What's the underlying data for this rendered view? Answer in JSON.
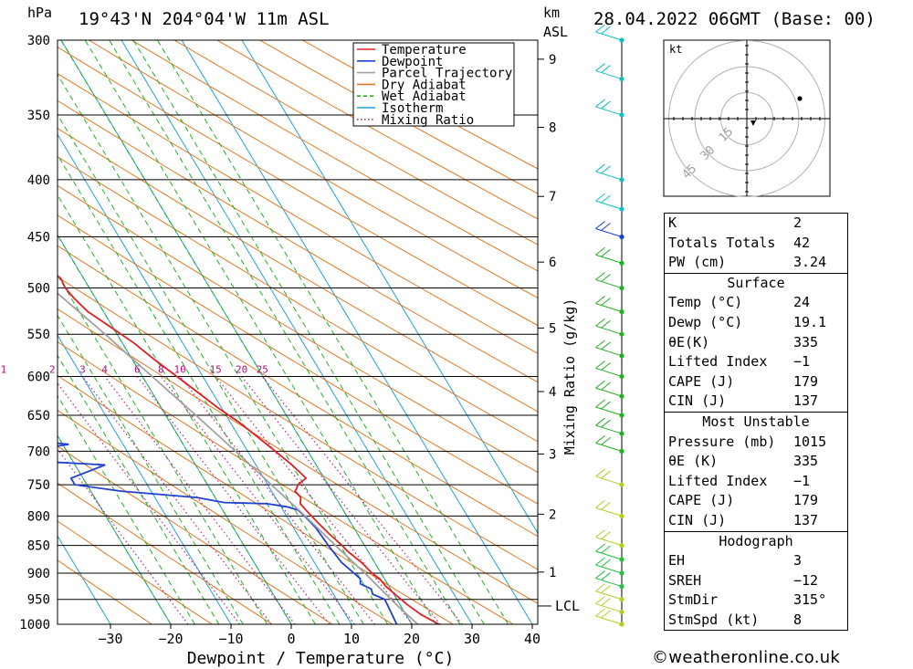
{
  "header": {
    "location": "19°43'N  204°04'W  11m  ASL",
    "pressure_unit": "hPa",
    "km_label": "km",
    "asl_label": "ASL",
    "datetime": "28.04.2022  06GMT  (Base: 00)"
  },
  "legend": [
    {
      "label": "Temperature",
      "color": "#e02020",
      "style": "solid"
    },
    {
      "label": "Dewpoint",
      "color": "#2040d0",
      "style": "solid"
    },
    {
      "label": "Parcel Trajectory",
      "color": "#a0a0a0",
      "style": "solid"
    },
    {
      "label": "Dry Adiabat",
      "color": "#e07820",
      "style": "solid"
    },
    {
      "label": "Wet Adiabat",
      "color": "#20b020",
      "style": "dashed"
    },
    {
      "label": "Isotherm",
      "color": "#20a0e0",
      "style": "solid"
    },
    {
      "label": "Mixing Ratio",
      "color": "#c02080",
      "style": "dotted"
    }
  ],
  "chart_data": {
    "type": "line",
    "chart_kind": "skew-T log-p sounding",
    "xlabel": "Dewpoint / Temperature (°C)",
    "ylabel_left": "hPa",
    "ylabel_right": "Mixing Ratio (g/kg)",
    "x_ticks": [
      -30,
      -20,
      -10,
      0,
      10,
      20,
      30,
      40
    ],
    "x_tick_labels": [
      "−30",
      "−20",
      "−10",
      "0",
      "10",
      "20",
      "30",
      "40"
    ],
    "y_ticks": [
      300,
      350,
      400,
      450,
      500,
      550,
      600,
      650,
      700,
      750,
      800,
      850,
      900,
      950,
      1000
    ],
    "y_scale": "log",
    "ylim": [
      1000,
      300
    ],
    "height_ticks_km": [
      1,
      2,
      3,
      4,
      5,
      6,
      7,
      8,
      9
    ],
    "height_tick_pressures": [
      898,
      797,
      704,
      619,
      543,
      474,
      414,
      359,
      312
    ],
    "lcl_label": "LCL",
    "lcl_pressure": 963,
    "mixing_ratio_labels": [
      "1",
      "2",
      "3",
      "4",
      "6",
      "8",
      "10",
      "15",
      "20",
      "25"
    ],
    "mixing_ratio_values": [
      1,
      2,
      3,
      4,
      6,
      8,
      10,
      15,
      20,
      25
    ],
    "series": [
      {
        "name": "Temperature",
        "color": "#e02020",
        "points": [
          [
            1000,
            24.5
          ],
          [
            980,
            22.5
          ],
          [
            960,
            21.2
          ],
          [
            940,
            20.2
          ],
          [
            925,
            19.5
          ],
          [
            910,
            19.2
          ],
          [
            900,
            18.5
          ],
          [
            880,
            17.8
          ],
          [
            860,
            16.6
          ],
          [
            850,
            16.3
          ],
          [
            830,
            15.3
          ],
          [
            810,
            14.5
          ],
          [
            790,
            13.8
          ],
          [
            780,
            13.5
          ],
          [
            770,
            14.2
          ],
          [
            760,
            13.9
          ],
          [
            755,
            14.5
          ],
          [
            750,
            15.0
          ],
          [
            740,
            17.0
          ],
          [
            720,
            16.0
          ],
          [
            700,
            14.6
          ],
          [
            680,
            13.1
          ],
          [
            660,
            11.5
          ],
          [
            640,
            9.4
          ],
          [
            620,
            7.6
          ],
          [
            600,
            5.7
          ],
          [
            580,
            3.7
          ],
          [
            560,
            1.9
          ],
          [
            540,
            -0.6
          ],
          [
            525,
            -2.6
          ],
          [
            510,
            -3.6
          ],
          [
            500,
            -4.0
          ],
          [
            490,
            -3.8
          ],
          [
            480,
            -5.0
          ],
          [
            470,
            -6.3
          ],
          [
            455,
            -8.0
          ],
          [
            440,
            -9.4
          ],
          [
            430,
            -10.5
          ],
          [
            420,
            -12.0
          ],
          [
            400,
            -14.9
          ],
          [
            380,
            -18.0
          ],
          [
            360,
            -21.1
          ],
          [
            345,
            -24.7
          ],
          [
            330,
            -28.0
          ],
          [
            315,
            -31.7
          ],
          [
            300,
            -35.0
          ]
        ]
      },
      {
        "name": "Dewpoint",
        "color": "#2040d0",
        "points": [
          [
            1000,
            17.5
          ],
          [
            970,
            17.8
          ],
          [
            950,
            18.0
          ],
          [
            940,
            16.5
          ],
          [
            930,
            16.8
          ],
          [
            920,
            15.5
          ],
          [
            910,
            16.0
          ],
          [
            900,
            15.5
          ],
          [
            880,
            14.5
          ],
          [
            850,
            14.0
          ],
          [
            820,
            13.7
          ],
          [
            800,
            13.0
          ],
          [
            790,
            12.5
          ],
          [
            785,
            11.0
          ],
          [
            780,
            8.0
          ],
          [
            778,
            1.0
          ],
          [
            770,
            -3.0
          ],
          [
            760,
            -15.0
          ],
          [
            750,
            -22.0
          ],
          [
            740,
            -22.0
          ],
          [
            720,
            -15.0
          ],
          [
            715,
            -25.0
          ],
          [
            705,
            -27.0
          ],
          [
            700,
            -27.0
          ],
          [
            690,
            -19.0
          ],
          [
            685,
            -25.0
          ],
          [
            675,
            -25.0
          ],
          [
            655,
            -21.0
          ],
          [
            645,
            -21.0
          ],
          [
            620,
            -21.5
          ],
          [
            580,
            -22.5
          ],
          [
            555,
            -23.0
          ],
          [
            530,
            -24.5
          ],
          [
            520,
            -31.0
          ],
          [
            510,
            -31.5
          ],
          [
            495,
            -40.0
          ],
          [
            480,
            -45.0
          ],
          [
            475,
            -48.0
          ],
          [
            460,
            -45.0
          ],
          [
            445,
            -40.0
          ],
          [
            432,
            -27.0
          ],
          [
            425,
            -27.0
          ],
          [
            415,
            -29.0
          ],
          [
            410,
            -31.0
          ],
          [
            405,
            -30.5
          ],
          [
            400,
            -31.5
          ],
          [
            395,
            -31.0
          ],
          [
            385,
            -33.0
          ],
          [
            375,
            -33.0
          ],
          [
            360,
            -34.0
          ],
          [
            345,
            -35.0
          ],
          [
            330,
            -36.0
          ],
          [
            320,
            -37.0
          ],
          [
            318,
            -38.0
          ],
          [
            305,
            -40.0
          ],
          [
            300,
            -40.5
          ]
        ]
      },
      {
        "name": "Parcel Trajectory",
        "color": "#a0a0a0",
        "points": [
          [
            1000,
            21.0
          ],
          [
            963,
            19.5
          ],
          [
            900,
            17.3
          ],
          [
            850,
            15.2
          ],
          [
            800,
            13.1
          ],
          [
            750,
            10.6
          ],
          [
            700,
            8.0
          ],
          [
            650,
            5.0
          ],
          [
            600,
            1.6
          ],
          [
            550,
            -2.0
          ],
          [
            500,
            -6.3
          ],
          [
            450,
            -11.2
          ],
          [
            400,
            -17.0
          ],
          [
            350,
            -24.0
          ],
          [
            300,
            -33.0
          ]
        ]
      }
    ],
    "wind_profile_pressures": [
      1000,
      975,
      950,
      925,
      900,
      875,
      850,
      800,
      750,
      700,
      675,
      650,
      625,
      600,
      575,
      550,
      525,
      500,
      475,
      450,
      425,
      400,
      350,
      325,
      300
    ],
    "hodograph": {
      "unit_label": "kt",
      "ring_labels": [
        "15",
        "30",
        "45"
      ]
    }
  },
  "indices": {
    "K": "2",
    "Totals Totals": "42",
    "PW (cm)": "3.24"
  },
  "surface": {
    "title": "Surface",
    "rows": [
      {
        "label": "Temp (°C)",
        "value": "24"
      },
      {
        "label": "Dewp (°C)",
        "value": "19.1"
      },
      {
        "label": "θE(K)",
        "value": "335"
      },
      {
        "label": "Lifted Index",
        "value": "−1"
      },
      {
        "label": "CAPE (J)",
        "value": "179"
      },
      {
        "label": "CIN (J)",
        "value": "137"
      }
    ]
  },
  "most_unstable": {
    "title": "Most Unstable",
    "rows": [
      {
        "label": "Pressure (mb)",
        "value": "1015"
      },
      {
        "label": "θE (K)",
        "value": "335"
      },
      {
        "label": "Lifted Index",
        "value": "−1"
      },
      {
        "label": "CAPE (J)",
        "value": "179"
      },
      {
        "label": "CIN (J)",
        "value": "137"
      }
    ]
  },
  "hodograph_table": {
    "title": "Hodograph",
    "rows": [
      {
        "label": "EH",
        "value": "3"
      },
      {
        "label": "SREH",
        "value": "−12"
      },
      {
        "label": "StmDir",
        "value": "315°"
      },
      {
        "label": "StmSpd (kt)",
        "value": "8"
      }
    ]
  },
  "credit": "©weatheronline.co.uk"
}
